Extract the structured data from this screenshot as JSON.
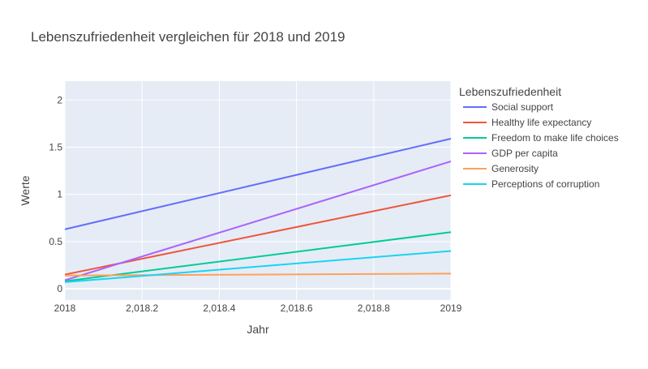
{
  "chart_data": {
    "type": "line",
    "title": "Lebenszufriedenheit vergleichen für 2018 und 2019",
    "xlabel": "Jahr",
    "ylabel": "Werte",
    "x": [
      2018,
      2019
    ],
    "xlim": [
      2018,
      2019
    ],
    "ylim": [
      -0.12,
      2.2
    ],
    "x_ticks": [
      "2018",
      "2,018.2",
      "2,018.4",
      "2,018.6",
      "2,018.8",
      "2019"
    ],
    "x_tick_values": [
      2018,
      2018.2,
      2018.4,
      2018.6,
      2018.8,
      2019
    ],
    "y_ticks": [
      "0",
      "0.5",
      "1",
      "1.5",
      "2"
    ],
    "y_tick_values": [
      0,
      0.5,
      1,
      1.5,
      2
    ],
    "grid": true,
    "legend_title": "Lebenszufriedenheit",
    "legend_position": "right",
    "series": [
      {
        "name": "Social support",
        "values": [
          0.63,
          1.59
        ],
        "color": "#636efa"
      },
      {
        "name": "Healthy life expectancy",
        "values": [
          0.15,
          0.99
        ],
        "color": "#ef553b"
      },
      {
        "name": "Freedom to make life choices",
        "values": [
          0.08,
          0.6
        ],
        "color": "#00cc96"
      },
      {
        "name": "GDP per capita",
        "values": [
          0.09,
          1.35
        ],
        "color": "#ab63fa"
      },
      {
        "name": "Generosity",
        "values": [
          0.14,
          0.16
        ],
        "color": "#ffa15a"
      },
      {
        "name": "Perceptions of corruption",
        "values": [
          0.07,
          0.4
        ],
        "color": "#19d3f3"
      }
    ],
    "plot_background": "#e5ecf6"
  }
}
